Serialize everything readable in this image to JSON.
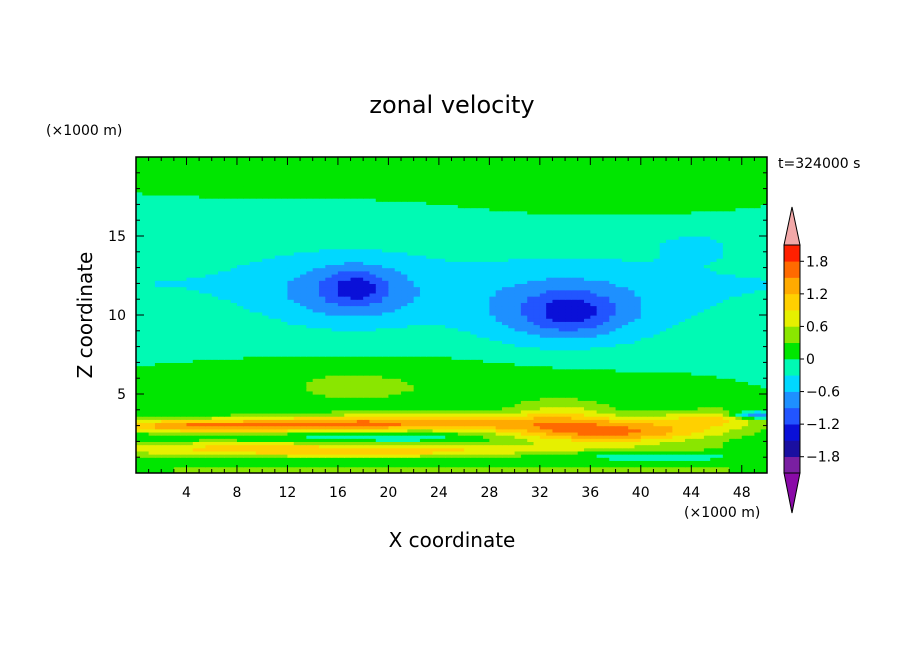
{
  "chart_data": {
    "type": "heatmap",
    "title": "zonal velocity",
    "xlabel": "X coordinate",
    "ylabel": "Z coordinate",
    "x_unit": "(×1000 m)",
    "y_unit": "(×1000 m)",
    "time_label": "t=324000 s",
    "xlim": [
      0,
      50
    ],
    "ylim": [
      0,
      20
    ],
    "x_ticks": [
      4,
      8,
      12,
      16,
      20,
      24,
      28,
      32,
      36,
      40,
      44,
      48
    ],
    "y_ticks": [
      5,
      10,
      15
    ],
    "colorbar": {
      "ticks": [
        "1.8",
        "1.2",
        "0.6",
        "0",
        "−0.6",
        "−1.2",
        "−1.8"
      ],
      "levels": [
        -1.8,
        -1.5,
        -1.2,
        -0.9,
        -0.6,
        -0.3,
        0,
        0.3,
        0.6,
        0.9,
        1.2,
        1.5,
        1.8
      ],
      "colors": [
        "#7a1fa2",
        "#1a0fa0",
        "#0a10d8",
        "#2255ff",
        "#1e90ff",
        "#00d8ff",
        "#00fab4",
        "#00e600",
        "#8ae600",
        "#e6f000",
        "#ffd000",
        "#ffaa00",
        "#ff6a00",
        "#ff2000"
      ],
      "under_color": "#8a0aa8",
      "over_color": "#f2a8a8"
    },
    "features": [
      {
        "x": 10,
        "z": 19,
        "sx": 14,
        "sz": 2.0,
        "v": 0.05
      },
      {
        "x": 38,
        "z": 18,
        "sx": 14,
        "sz": 2.5,
        "v": 0.1
      },
      {
        "x": 25,
        "z": 15,
        "sx": 20,
        "sz": 0.8,
        "v": 0.05
      },
      {
        "x": 44,
        "z": 14.4,
        "sx": 2.5,
        "sz": 0.8,
        "v": -0.35
      },
      {
        "x": 17,
        "z": 11.5,
        "sx": 5.5,
        "sz": 2.0,
        "v": -0.7
      },
      {
        "x": 17.5,
        "z": 11.8,
        "sx": 2.0,
        "sz": 1.0,
        "v": -0.45
      },
      {
        "x": 34,
        "z": 10.2,
        "sx": 7.0,
        "sz": 2.2,
        "v": -0.75
      },
      {
        "x": 34.5,
        "z": 10.2,
        "sx": 3.0,
        "sz": 1.2,
        "v": -0.45
      },
      {
        "x": 20,
        "z": 5.5,
        "sx": 16,
        "sz": 1.6,
        "v": 0.3
      },
      {
        "x": 17,
        "z": 5.5,
        "sx": 3.0,
        "sz": 0.7,
        "v": 0.25
      },
      {
        "x": 10,
        "z": 3.0,
        "sx": 12,
        "sz": 0.45,
        "v": 1.3
      },
      {
        "x": 3,
        "z": 3.0,
        "sx": 4,
        "sz": 0.4,
        "v": 0.45
      },
      {
        "x": 24,
        "z": 3.3,
        "sx": 14,
        "sz": 0.5,
        "v": 1.1
      },
      {
        "x": 37,
        "z": 2.6,
        "sx": 9,
        "sz": 0.7,
        "v": 1.6
      },
      {
        "x": 34,
        "z": 4.0,
        "sx": 4,
        "sz": 0.7,
        "v": 0.6
      },
      {
        "x": 46,
        "z": 3.5,
        "sx": 5,
        "sz": 0.6,
        "v": 0.8
      },
      {
        "x": 20,
        "z": 1.4,
        "sx": 25,
        "sz": 0.45,
        "v": 1.0
      },
      {
        "x": 8,
        "z": 1.8,
        "sx": 10,
        "sz": 0.4,
        "v": 0.5
      },
      {
        "x": 20,
        "z": 2.3,
        "sx": 12,
        "sz": 0.35,
        "v": -0.3
      },
      {
        "x": 49,
        "z": 3.7,
        "sx": 1.8,
        "sz": 0.25,
        "v": -1.3
      },
      {
        "x": 38,
        "z": 1.2,
        "sx": 10,
        "sz": 0.3,
        "v": -0.5
      },
      {
        "x": 25,
        "z": 0.2,
        "sx": 30,
        "sz": 0.25,
        "v": 0.6
      }
    ]
  }
}
